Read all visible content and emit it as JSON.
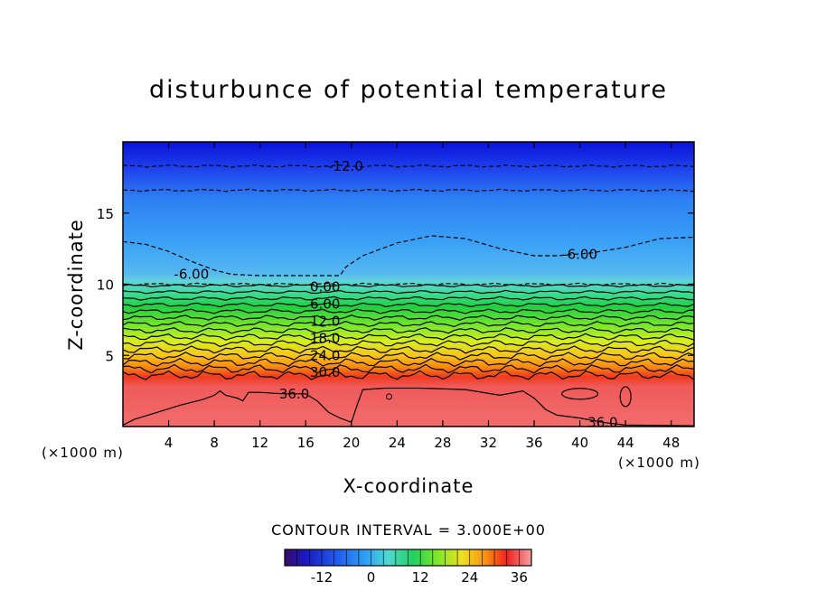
{
  "chart_data": {
    "type": "heatmap",
    "title": "disturbunce of potential temperature",
    "xlabel": "X-coordinate",
    "ylabel": "Z-coordinate",
    "x_unit_left": "(×1000 m)",
    "x_unit_right": "(×1000 m)",
    "xlim": [
      0,
      50
    ],
    "ylim": [
      0,
      20
    ],
    "x_ticks": [
      "4",
      "8",
      "12",
      "16",
      "20",
      "24",
      "28",
      "32",
      "36",
      "40",
      "44",
      "48"
    ],
    "y_ticks": [
      "5",
      "10",
      "15"
    ],
    "colorbar": {
      "label": "CONTOUR INTERVAL = 3.000E+00",
      "range": [
        -21,
        39
      ],
      "ticks": [
        "-12",
        "0",
        "12",
        "24",
        "36"
      ]
    },
    "contour_labels": [
      "-12.0",
      "-6.00",
      "-6.00",
      "0.00",
      "6.00",
      "12.0",
      "18.0",
      "24.0",
      "30.0",
      "36.0",
      "36.0"
    ],
    "color_levels": [
      {
        "z": 20,
        "value": -15,
        "color": "#0a12d8"
      },
      {
        "z": 18,
        "value": -12,
        "color": "#1f45ee"
      },
      {
        "z": 16,
        "value": -9,
        "color": "#2d80f4"
      },
      {
        "z": 13,
        "value": -6,
        "color": "#3aa0f6"
      },
      {
        "z": 10.8,
        "value": -3,
        "color": "#55b8f2"
      },
      {
        "z": 10.2,
        "value": 0,
        "color": "#62d2da"
      },
      {
        "z": 9.4,
        "value": 3,
        "color": "#3cdc9a"
      },
      {
        "z": 8.4,
        "value": 9,
        "color": "#20d040"
      },
      {
        "z": 7.0,
        "value": 15,
        "color": "#7ee82a"
      },
      {
        "z": 6.0,
        "value": 20,
        "color": "#d8ee20"
      },
      {
        "z": 5.0,
        "value": 24,
        "color": "#f8c41c"
      },
      {
        "z": 4.2,
        "value": 28,
        "color": "#f88a12"
      },
      {
        "z": 3.5,
        "value": 33,
        "color": "#f03a1e"
      },
      {
        "z": 2.8,
        "value": 36,
        "color": "#f05a5a"
      },
      {
        "z": 0,
        "value": 38,
        "color": "#f26c6c"
      }
    ]
  }
}
